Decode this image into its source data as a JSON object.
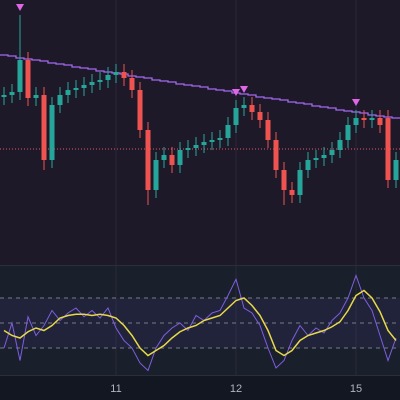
{
  "chart_data": {
    "type": "candlestick",
    "categories": [
      null,
      null,
      null,
      null,
      null,
      null,
      null,
      null,
      null,
      null,
      null,
      null,
      null,
      null,
      "11",
      null,
      null,
      null,
      null,
      null,
      null,
      null,
      null,
      null,
      null,
      null,
      null,
      null,
      null,
      "12",
      null,
      null,
      null,
      null,
      null,
      null,
      null,
      null,
      null,
      null,
      null,
      null,
      null,
      null,
      "15",
      null,
      null,
      null,
      null,
      null
    ],
    "open": [
      168,
      170,
      173,
      205,
      167,
      170,
      105,
      160,
      170,
      175,
      177,
      180,
      183,
      185,
      190,
      193,
      187,
      175,
      135,
      75,
      105,
      110,
      100,
      115,
      117,
      120,
      123,
      125,
      127,
      140,
      157,
      160,
      153,
      145,
      125,
      95,
      75,
      70,
      95,
      105,
      107,
      110,
      115,
      125,
      140,
      147,
      145,
      147,
      147,
      85
    ],
    "high": [
      178,
      181,
      250,
      213,
      178,
      178,
      168,
      178,
      183,
      185,
      188,
      191,
      193,
      198,
      201,
      201,
      195,
      183,
      143,
      113,
      118,
      118,
      123,
      125,
      128,
      131,
      133,
      135,
      148,
      165,
      168,
      168,
      161,
      153,
      133,
      103,
      83,
      103,
      113,
      115,
      118,
      123,
      133,
      148,
      155,
      155,
      155,
      155,
      155,
      113
    ],
    "low": [
      160,
      162,
      165,
      159,
      159,
      95,
      97,
      152,
      162,
      167,
      169,
      172,
      175,
      177,
      182,
      179,
      167,
      127,
      60,
      67,
      97,
      92,
      92,
      107,
      109,
      112,
      115,
      117,
      119,
      132,
      149,
      145,
      137,
      117,
      87,
      60,
      62,
      62,
      87,
      97,
      99,
      102,
      107,
      117,
      132,
      137,
      137,
      132,
      77,
      77
    ],
    "close": [
      170,
      173,
      205,
      167,
      170,
      105,
      160,
      170,
      175,
      177,
      180,
      183,
      185,
      190,
      193,
      187,
      175,
      135,
      75,
      105,
      110,
      100,
      115,
      117,
      120,
      123,
      125,
      127,
      140,
      157,
      160,
      153,
      145,
      125,
      95,
      75,
      70,
      95,
      105,
      107,
      110,
      115,
      125,
      140,
      147,
      145,
      147,
      140,
      85,
      105
    ],
    "up_color": "#26a69a",
    "down_color": "#ef5350",
    "ylim": [
      0,
      265
    ],
    "resistance": {
      "color": "#a468f0",
      "values": [
        210,
        209,
        207,
        206,
        205,
        204,
        202,
        201,
        200,
        198,
        197,
        196,
        194,
        193,
        192,
        191,
        189,
        188,
        187,
        185,
        184,
        183,
        181,
        180,
        179,
        178,
        176,
        175,
        174,
        172,
        171,
        170,
        168,
        167,
        166,
        165,
        163,
        162,
        161,
        159,
        158,
        157,
        155,
        154,
        153,
        152,
        150,
        149,
        148,
        147
      ]
    },
    "price_line": {
      "value": 116,
      "color": "#e0566a"
    },
    "markers": {
      "indices": [
        2,
        29,
        30,
        44
      ],
      "color": "#e066e8"
    },
    "oscillator": {
      "ylim": [
        0,
        100
      ],
      "levels": [
        70,
        50,
        30
      ],
      "band": [
        30,
        70
      ],
      "series": [
        {
          "color": "#7d5fe0",
          "values": [
            30,
            50,
            20,
            55,
            40,
            48,
            60,
            52,
            58,
            62,
            55,
            60,
            54,
            62,
            46,
            36,
            30,
            18,
            12,
            30,
            40,
            46,
            50,
            44,
            56,
            52,
            58,
            60,
            72,
            85,
            62,
            58,
            48,
            30,
            14,
            20,
            36,
            48,
            40,
            46,
            42,
            52,
            58,
            70,
            88,
            70,
            60,
            40,
            20,
            38
          ]
        },
        {
          "color": "#e8d84a",
          "values": [
            44,
            40,
            38,
            43,
            46,
            44,
            48,
            54,
            56,
            57,
            57,
            56,
            57,
            56,
            54,
            48,
            40,
            30,
            24,
            28,
            32,
            38,
            43,
            46,
            48,
            52,
            54,
            56,
            62,
            68,
            70,
            64,
            56,
            44,
            28,
            24,
            28,
            36,
            40,
            42,
            44,
            47,
            51,
            60,
            72,
            76,
            70,
            59,
            44,
            36
          ]
        }
      ]
    }
  }
}
